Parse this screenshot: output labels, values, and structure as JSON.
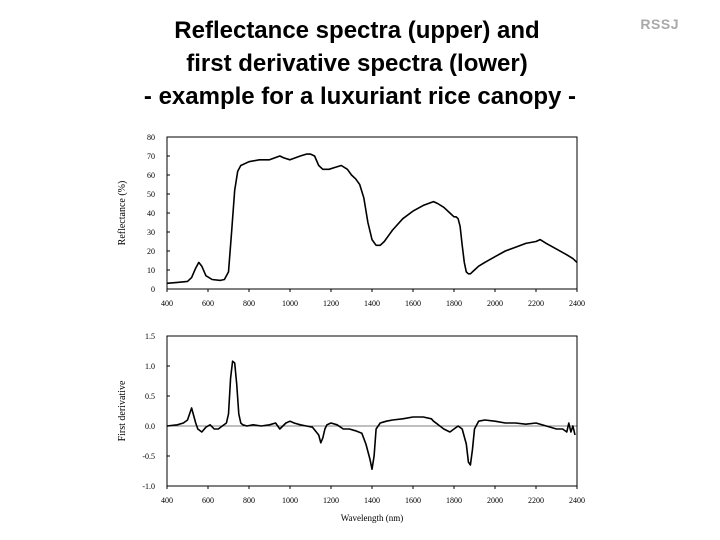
{
  "slide": {
    "title_lines": [
      "Reflectance spectra (upper) and",
      "first derivative spectra (lower)",
      "- example for a luxuriant rice canopy -"
    ],
    "logo": "RSSJ"
  },
  "chart_data": [
    {
      "type": "line",
      "ylabel": "Reflectance (%)",
      "xlabel": "",
      "xlim": [
        400,
        2400
      ],
      "ylim": [
        0,
        80
      ],
      "xticks": [
        400,
        600,
        800,
        1000,
        1200,
        1400,
        1600,
        1800,
        2000,
        2200,
        2400
      ],
      "yticks": [
        0,
        10,
        20,
        30,
        40,
        50,
        60,
        70,
        80
      ],
      "line_color": "#000000",
      "series": [
        {
          "x": [
            400,
            450,
            500,
            520,
            540,
            555,
            570,
            590,
            620,
            660,
            680,
            700,
            715,
            730,
            745,
            760,
            800,
            850,
            900,
            950,
            970,
            1000,
            1050,
            1080,
            1100,
            1120,
            1140,
            1160,
            1190,
            1220,
            1250,
            1280,
            1300,
            1320,
            1340,
            1360,
            1380,
            1400,
            1420,
            1440,
            1460,
            1480,
            1500,
            1550,
            1600,
            1650,
            1700,
            1720,
            1750,
            1780,
            1800,
            1810,
            1820,
            1830,
            1840,
            1850,
            1860,
            1870,
            1880,
            1890,
            1900,
            1920,
            1950,
            2000,
            2050,
            2100,
            2150,
            2200,
            2220,
            2250,
            2300,
            2350,
            2380,
            2400
          ],
          "y": [
            3,
            3.5,
            4,
            6,
            11,
            14,
            12,
            7,
            5,
            4.5,
            5,
            9,
            30,
            52,
            62,
            65,
            67,
            68,
            68,
            70,
            69,
            68,
            70,
            71,
            71,
            70,
            65,
            63,
            63,
            64,
            65,
            63,
            60,
            58,
            55,
            48,
            35,
            26,
            23,
            23,
            25,
            28,
            31,
            37,
            41,
            44,
            46,
            45,
            43,
            40,
            38,
            38,
            37,
            33,
            23,
            14,
            9,
            8,
            8,
            9,
            10,
            12,
            14,
            17,
            20,
            22,
            24,
            25,
            26,
            24,
            21,
            18,
            16,
            14
          ]
        }
      ]
    },
    {
      "type": "line",
      "ylabel": "First derivative",
      "xlabel": "Wavelength (nm)",
      "xlim": [
        400,
        2400
      ],
      "ylim": [
        -1.0,
        1.5
      ],
      "xticks": [
        400,
        600,
        800,
        1000,
        1200,
        1400,
        1600,
        1800,
        2000,
        2200,
        2400
      ],
      "yticks": [
        -1.0,
        -0.5,
        0.0,
        0.5,
        1.0,
        1.5
      ],
      "line_color": "#000000",
      "series": [
        {
          "x": [
            400,
            450,
            480,
            500,
            520,
            540,
            550,
            570,
            590,
            610,
            630,
            650,
            670,
            690,
            700,
            710,
            720,
            730,
            740,
            750,
            760,
            770,
            790,
            820,
            860,
            900,
            930,
            950,
            980,
            1000,
            1020,
            1050,
            1080,
            1110,
            1140,
            1150,
            1160,
            1170,
            1180,
            1200,
            1230,
            1260,
            1290,
            1320,
            1350,
            1370,
            1390,
            1400,
            1410,
            1420,
            1440,
            1470,
            1500,
            1550,
            1600,
            1650,
            1690,
            1700,
            1720,
            1750,
            1780,
            1800,
            1820,
            1840,
            1860,
            1870,
            1880,
            1890,
            1900,
            1920,
            1950,
            2000,
            2050,
            2100,
            2150,
            2200,
            2250,
            2300,
            2330,
            2350,
            2360,
            2370,
            2380,
            2390
          ],
          "y": [
            0.0,
            0.02,
            0.05,
            0.1,
            0.3,
            0.05,
            -0.05,
            -0.1,
            -0.02,
            0.02,
            -0.05,
            -0.05,
            0.0,
            0.05,
            0.2,
            0.8,
            1.08,
            1.05,
            0.7,
            0.2,
            0.05,
            0.02,
            0.0,
            0.02,
            0.0,
            0.02,
            0.05,
            -0.05,
            0.05,
            0.08,
            0.05,
            0.02,
            0.0,
            -0.02,
            -0.15,
            -0.28,
            -0.2,
            -0.05,
            0.02,
            0.05,
            0.02,
            -0.05,
            -0.05,
            -0.08,
            -0.12,
            -0.3,
            -0.55,
            -0.72,
            -0.5,
            -0.05,
            0.05,
            0.08,
            0.1,
            0.12,
            0.15,
            0.15,
            0.12,
            0.08,
            0.03,
            -0.05,
            -0.1,
            -0.05,
            0.0,
            -0.05,
            -0.3,
            -0.6,
            -0.65,
            -0.4,
            -0.05,
            0.08,
            0.1,
            0.08,
            0.05,
            0.05,
            0.03,
            0.05,
            0.0,
            -0.05,
            -0.05,
            -0.1,
            0.05,
            -0.1,
            0.0,
            -0.15
          ]
        }
      ]
    }
  ]
}
